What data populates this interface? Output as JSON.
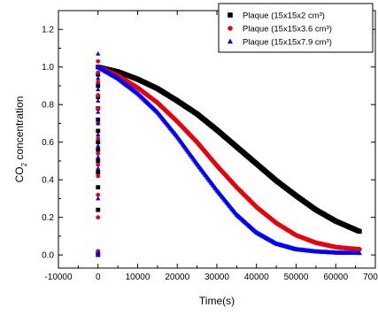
{
  "chart_data": {
    "type": "scatter",
    "xlabel": "Time(s)",
    "ylabel": {
      "prefix": "CO",
      "subscript": "2",
      "suffix": " concentration"
    },
    "xlim": [
      -10000,
      70000
    ],
    "ylim": [
      -0.07,
      1.3
    ],
    "xticks": [
      -10000,
      0,
      10000,
      20000,
      30000,
      40000,
      50000,
      60000,
      70000
    ],
    "xtick_labels": [
      "-10000",
      "0",
      "10000",
      "20000",
      "30000",
      "40000",
      "50000",
      "60000",
      "70000"
    ],
    "yticks": [
      0.0,
      0.2,
      0.4,
      0.6,
      0.8,
      1.0,
      1.2
    ],
    "ytick_labels": [
      "0.0",
      "0.2",
      "0.4",
      "0.6",
      "0.8",
      "1.0",
      "1.2"
    ],
    "legend_position": "top-right",
    "grid": false,
    "series": [
      {
        "name": "Plaque (15x15x2 cm³)",
        "color": "#000000",
        "marker": "square",
        "ramp_x": 0,
        "ramp_values": [
          0.0,
          0.01,
          0.24,
          0.36,
          0.44,
          0.5,
          0.56,
          0.6,
          0.66,
          0.72,
          0.78,
          0.84,
          0.9,
          0.96,
          1.0
        ],
        "decay": {
          "x": [
            0,
            5000,
            10000,
            15000,
            20000,
            25000,
            30000,
            35000,
            40000,
            45000,
            50000,
            55000,
            60000,
            66000
          ],
          "y": [
            1.0,
            0.975,
            0.935,
            0.885,
            0.82,
            0.75,
            0.665,
            0.575,
            0.485,
            0.395,
            0.315,
            0.24,
            0.18,
            0.125
          ]
        }
      },
      {
        "name": "Plaque (15x15x3.6 cm³)",
        "color": "#e8000b",
        "marker": "circle",
        "ramp_x": 0,
        "ramp_values": [
          0.0,
          0.02,
          0.2,
          0.32,
          0.42,
          0.48,
          0.54,
          0.62,
          0.7,
          0.78,
          0.85,
          0.92,
          0.97,
          1.03
        ],
        "decay": {
          "x": [
            0,
            5000,
            10000,
            15000,
            20000,
            25000,
            30000,
            35000,
            40000,
            45000,
            50000,
            55000,
            60000,
            66000
          ],
          "y": [
            1.0,
            0.955,
            0.89,
            0.81,
            0.71,
            0.6,
            0.475,
            0.36,
            0.255,
            0.17,
            0.105,
            0.065,
            0.042,
            0.03
          ]
        }
      },
      {
        "name": "Plaque (15x15x7.9 cm³)",
        "color": "#0000ff",
        "marker": "triangle",
        "ramp_x": 0,
        "ramp_values": [
          0.0,
          0.01,
          0.3,
          0.46,
          0.52,
          0.58,
          0.64,
          0.7,
          0.76,
          0.82,
          0.88,
          0.94,
          1.0,
          1.07
        ],
        "decay": {
          "x": [
            0,
            5000,
            10000,
            15000,
            20000,
            25000,
            30000,
            35000,
            40000,
            45000,
            50000,
            55000,
            60000,
            66000
          ],
          "y": [
            1.0,
            0.94,
            0.86,
            0.76,
            0.63,
            0.485,
            0.345,
            0.215,
            0.12,
            0.06,
            0.03,
            0.018,
            0.012,
            0.01
          ]
        }
      }
    ]
  }
}
